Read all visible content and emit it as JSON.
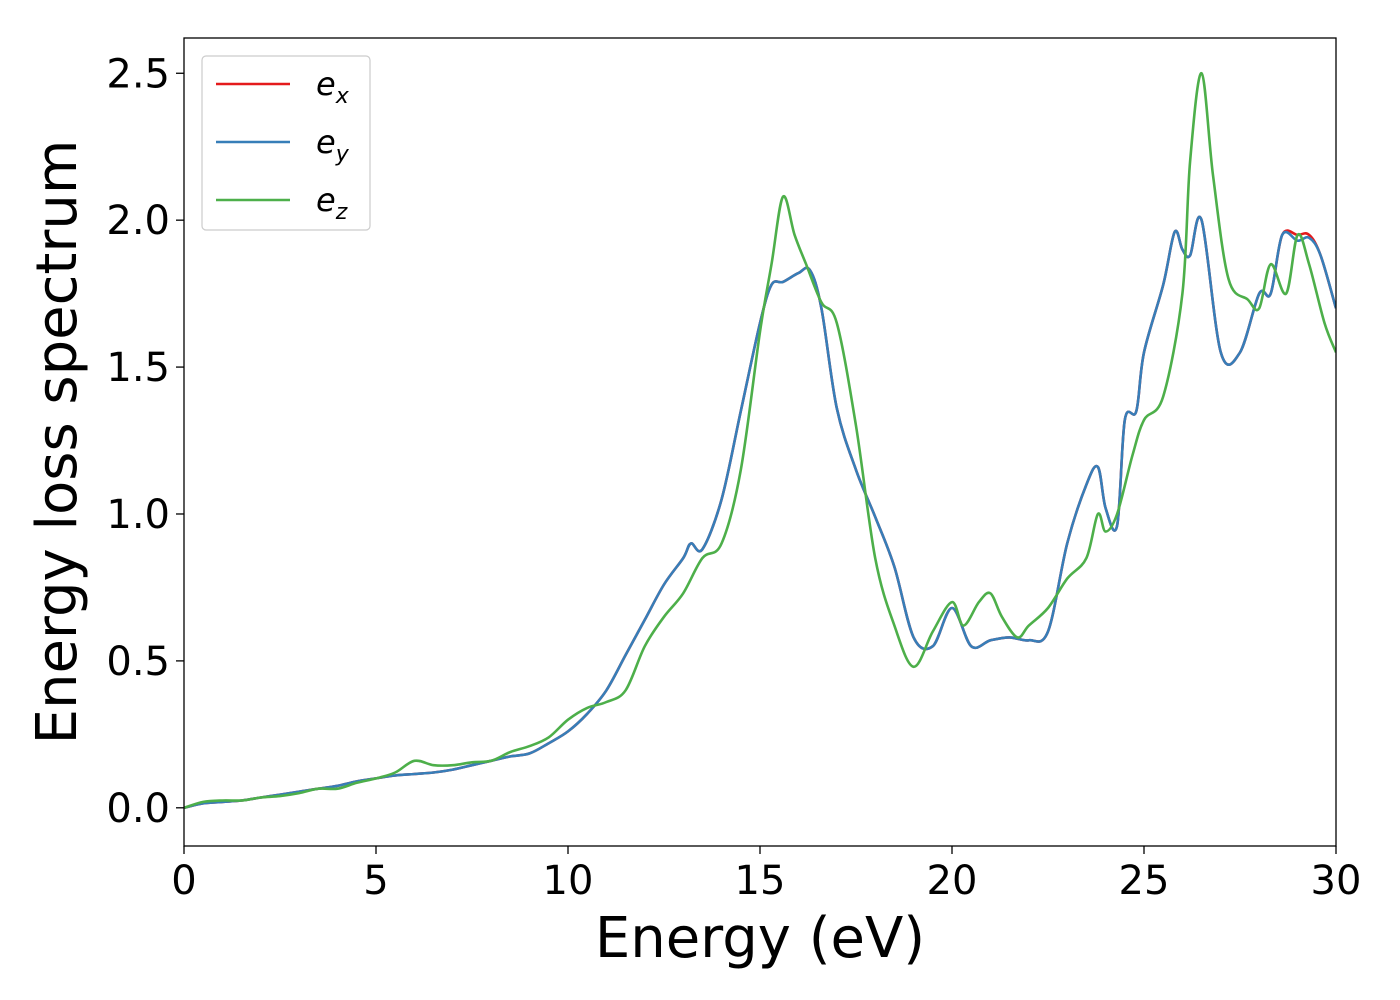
{
  "chart_data": {
    "type": "line",
    "title": "",
    "xlabel": "Energy (eV)",
    "ylabel": "Energy loss spectrum",
    "xlim": [
      0,
      30
    ],
    "ylim": [
      -0.13,
      2.62
    ],
    "xticks": [
      0,
      5,
      10,
      15,
      20,
      25,
      30
    ],
    "xtick_labels": [
      "0",
      "5",
      "10",
      "15",
      "20",
      "25",
      "30"
    ],
    "yticks": [
      0.0,
      0.5,
      1.0,
      1.5,
      2.0,
      2.5
    ],
    "ytick_labels": [
      "0.0",
      "0.5",
      "1.0",
      "1.5",
      "2.0",
      "2.5"
    ],
    "grid": false,
    "legend_position": "top-left",
    "series": [
      {
        "name": "e_x",
        "label_base": "e",
        "label_sub": "x",
        "color": "#e41a1c",
        "x": [
          0,
          0.5,
          1,
          1.5,
          2,
          2.5,
          3,
          3.5,
          4,
          4.5,
          5,
          5.5,
          6,
          6.5,
          7,
          7.5,
          8,
          8.5,
          9,
          9.5,
          10,
          10.5,
          11,
          11.5,
          12,
          12.5,
          13,
          13.2,
          13.5,
          14,
          14.5,
          15,
          15.3,
          15.6,
          16,
          16.3,
          16.6,
          17,
          17.5,
          18,
          18.5,
          19,
          19.5,
          20,
          20.5,
          21,
          21.5,
          22,
          22.5,
          23,
          23.5,
          23.8,
          24,
          24.3,
          24.5,
          24.8,
          25,
          25.5,
          25.8,
          26,
          26.2,
          26.5,
          27,
          27.5,
          28,
          28.3,
          28.6,
          29,
          29.3,
          29.6,
          30
        ],
        "y": [
          0.0,
          0.015,
          0.02,
          0.025,
          0.035,
          0.045,
          0.055,
          0.065,
          0.075,
          0.09,
          0.1,
          0.11,
          0.115,
          0.12,
          0.13,
          0.145,
          0.16,
          0.175,
          0.185,
          0.22,
          0.26,
          0.32,
          0.4,
          0.52,
          0.64,
          0.76,
          0.85,
          0.9,
          0.88,
          1.05,
          1.35,
          1.65,
          1.78,
          1.79,
          1.82,
          1.83,
          1.7,
          1.36,
          1.15,
          0.99,
          0.82,
          0.58,
          0.55,
          0.68,
          0.55,
          0.57,
          0.58,
          0.57,
          0.6,
          0.9,
          1.1,
          1.16,
          1.02,
          0.96,
          1.32,
          1.35,
          1.55,
          1.78,
          1.96,
          1.9,
          1.88,
          2.0,
          1.55,
          1.55,
          1.75,
          1.75,
          1.95,
          1.95,
          1.95,
          1.88,
          1.7
        ]
      },
      {
        "name": "e_y",
        "label_base": "e",
        "label_sub": "y",
        "color": "#377eb8",
        "x": [
          0,
          0.5,
          1,
          1.5,
          2,
          2.5,
          3,
          3.5,
          4,
          4.5,
          5,
          5.5,
          6,
          6.5,
          7,
          7.5,
          8,
          8.5,
          9,
          9.5,
          10,
          10.5,
          11,
          11.5,
          12,
          12.5,
          13,
          13.2,
          13.5,
          14,
          14.5,
          15,
          15.3,
          15.6,
          16,
          16.3,
          16.6,
          17,
          17.5,
          18,
          18.5,
          19,
          19.5,
          20,
          20.5,
          21,
          21.5,
          22,
          22.5,
          23,
          23.5,
          23.8,
          24,
          24.3,
          24.5,
          24.8,
          25,
          25.5,
          25.8,
          26,
          26.2,
          26.5,
          27,
          27.5,
          28,
          28.3,
          28.6,
          29,
          29.3,
          29.6,
          30
        ],
        "y": [
          0.0,
          0.015,
          0.02,
          0.025,
          0.035,
          0.045,
          0.055,
          0.065,
          0.075,
          0.09,
          0.1,
          0.11,
          0.115,
          0.12,
          0.13,
          0.145,
          0.16,
          0.175,
          0.185,
          0.22,
          0.26,
          0.32,
          0.4,
          0.52,
          0.64,
          0.76,
          0.85,
          0.9,
          0.88,
          1.05,
          1.35,
          1.65,
          1.78,
          1.79,
          1.82,
          1.83,
          1.7,
          1.36,
          1.15,
          0.99,
          0.82,
          0.58,
          0.55,
          0.68,
          0.55,
          0.57,
          0.58,
          0.57,
          0.6,
          0.9,
          1.1,
          1.16,
          1.02,
          0.96,
          1.32,
          1.35,
          1.55,
          1.78,
          1.96,
          1.9,
          1.88,
          2.0,
          1.55,
          1.55,
          1.75,
          1.75,
          1.95,
          1.93,
          1.94,
          1.88,
          1.7
        ]
      },
      {
        "name": "e_z",
        "label_base": "e",
        "label_sub": "z",
        "color": "#4daf4a",
        "x": [
          0,
          0.5,
          1,
          1.5,
          2,
          2.5,
          3,
          3.5,
          4,
          4.5,
          5,
          5.5,
          6,
          6.5,
          7,
          7.5,
          8,
          8.5,
          9,
          9.5,
          10,
          10.5,
          11,
          11.5,
          12,
          12.5,
          13,
          13.5,
          14,
          14.5,
          15,
          15.3,
          15.6,
          15.9,
          16.2,
          16.6,
          17,
          17.5,
          18,
          18.5,
          19,
          19.5,
          20,
          20.3,
          20.7,
          21,
          21.3,
          21.7,
          22,
          22.5,
          23,
          23.5,
          23.8,
          24,
          24.3,
          24.7,
          25,
          25.5,
          26,
          26.2,
          26.5,
          26.8,
          27.2,
          27.7,
          28,
          28.3,
          28.7,
          29,
          29.3,
          29.7,
          30
        ],
        "y": [
          0.0,
          0.02,
          0.025,
          0.025,
          0.035,
          0.04,
          0.05,
          0.065,
          0.065,
          0.085,
          0.1,
          0.12,
          0.16,
          0.145,
          0.145,
          0.155,
          0.16,
          0.19,
          0.21,
          0.24,
          0.3,
          0.34,
          0.36,
          0.4,
          0.55,
          0.65,
          0.73,
          0.85,
          0.9,
          1.15,
          1.62,
          1.85,
          2.08,
          1.95,
          1.85,
          1.72,
          1.65,
          1.3,
          0.85,
          0.62,
          0.48,
          0.6,
          0.7,
          0.62,
          0.7,
          0.73,
          0.65,
          0.58,
          0.62,
          0.68,
          0.78,
          0.85,
          1.0,
          0.94,
          1.0,
          1.2,
          1.32,
          1.4,
          1.75,
          2.2,
          2.5,
          2.15,
          1.8,
          1.73,
          1.7,
          1.85,
          1.75,
          1.95,
          1.85,
          1.65,
          1.55
        ]
      }
    ]
  }
}
